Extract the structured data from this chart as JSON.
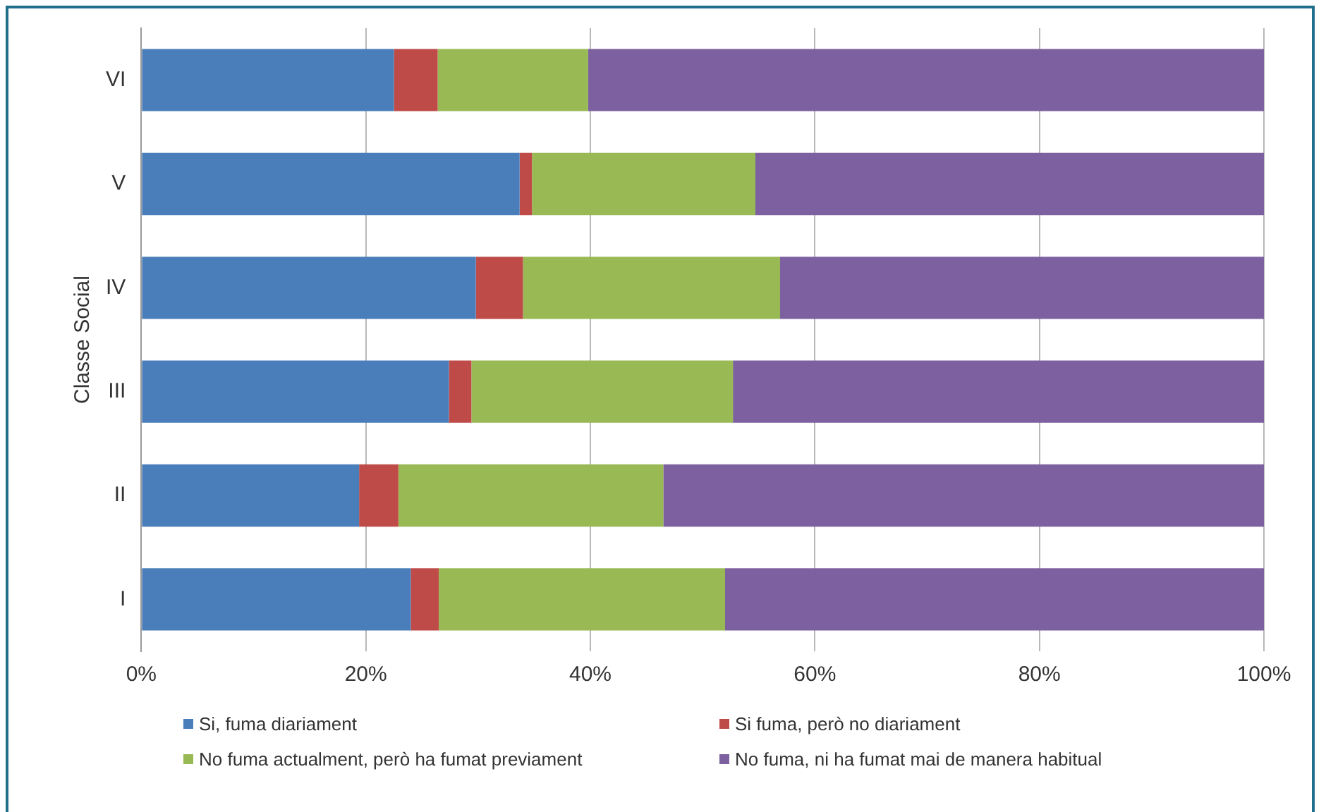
{
  "chart_data": {
    "type": "bar",
    "orientation": "horizontal",
    "stacked": true,
    "ylabel": "Classe Social",
    "categories": [
      "VI",
      "V",
      "IV",
      "III",
      "II",
      "I"
    ],
    "series": [
      {
        "name": "Si, fuma diariament",
        "color": "#4a7ebb",
        "values": [
          22.5,
          33.7,
          29.8,
          27.4,
          19.4,
          24.0
        ]
      },
      {
        "name": "Si fuma, però no diariament",
        "color": "#be4b48",
        "values": [
          3.9,
          1.1,
          4.2,
          2.0,
          3.5,
          2.5
        ]
      },
      {
        "name": "No fuma actualment, però ha fumat previament",
        "color": "#98b954",
        "values": [
          13.4,
          19.9,
          22.9,
          23.3,
          23.6,
          25.5
        ]
      },
      {
        "name": "No fuma, ni ha fumat mai de manera habitual",
        "color": "#7d60a0",
        "values": [
          60.2,
          45.3,
          43.1,
          47.3,
          53.5,
          48.0
        ]
      }
    ],
    "xlim": [
      0,
      100
    ],
    "xticks": [
      {
        "value": 0,
        "label": "0%"
      },
      {
        "value": 20,
        "label": "20%"
      },
      {
        "value": 40,
        "label": "40%"
      },
      {
        "value": 60,
        "label": "60%"
      },
      {
        "value": 80,
        "label": "80%"
      },
      {
        "value": 100,
        "label": "100%"
      }
    ],
    "grid": "x",
    "legend": "bottom"
  }
}
